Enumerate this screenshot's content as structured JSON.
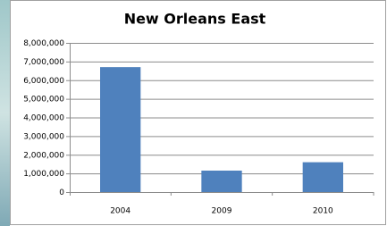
{
  "chart_data": {
    "type": "bar",
    "title": "New Orleans East",
    "categories": [
      "2004",
      "2009",
      "2010"
    ],
    "values": [
      6700000,
      1150000,
      1600000
    ],
    "color": "#4f81bd",
    "ylim": [
      0,
      8000000
    ],
    "yticks": [
      0,
      {
        "value": 1000000,
        "label": "1,000,000"
      },
      {
        "value": 2000000,
        "label": "2,000,000"
      },
      {
        "value": 3000000,
        "label": "3,000,000"
      },
      {
        "value": 4000000,
        "label": "4,000,000"
      },
      {
        "value": 5000000,
        "label": "5,000,000"
      },
      {
        "value": 6000000,
        "label": "6,000,000"
      },
      {
        "value": 7000000,
        "label": "7,000,000"
      },
      {
        "value": 8000000,
        "label": "8,000,000"
      }
    ],
    "grid": true
  }
}
